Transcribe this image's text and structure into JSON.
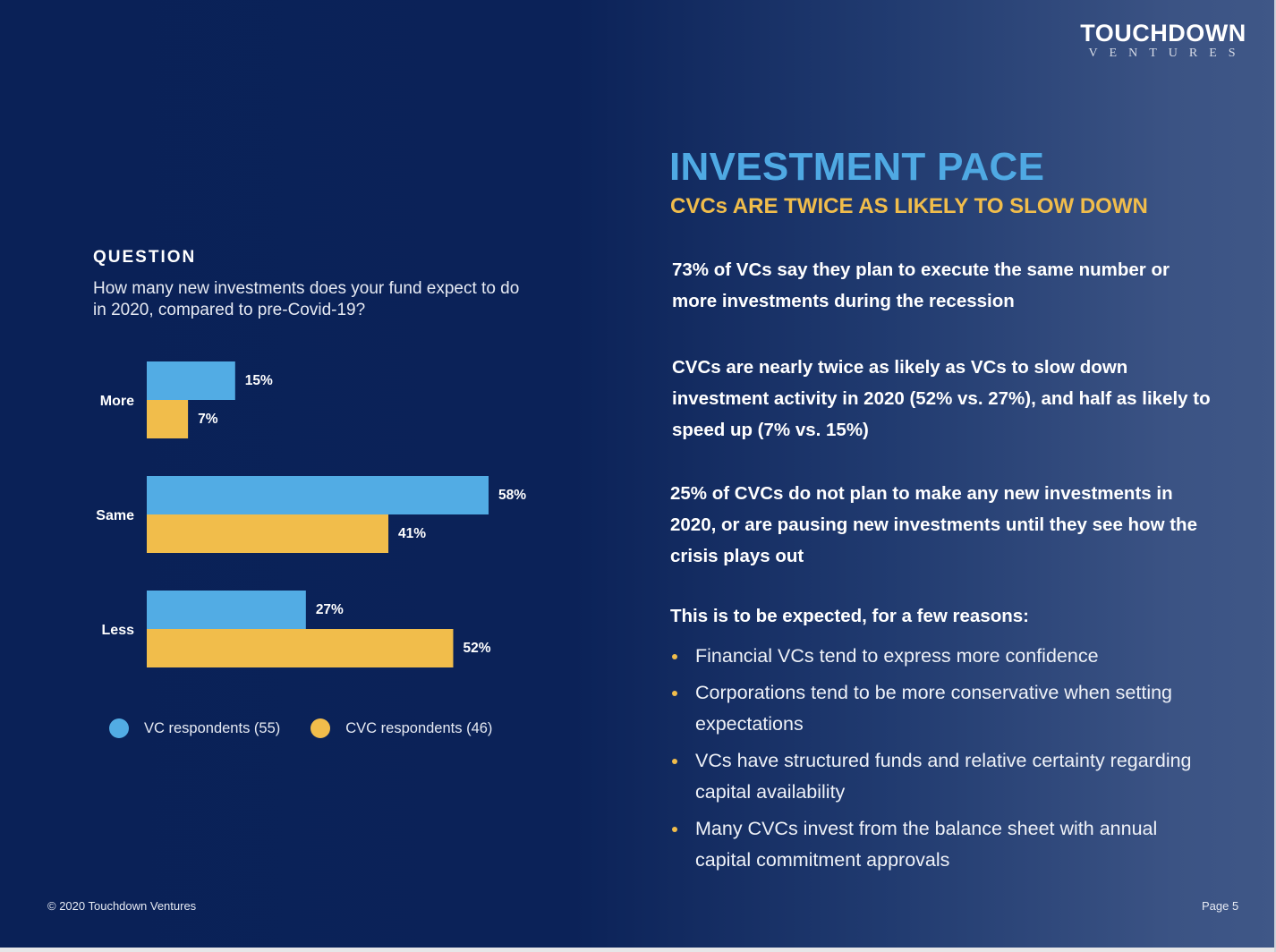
{
  "brand": {
    "name": "TOUCHDOWN",
    "tagline": "VENTURES"
  },
  "header": {
    "title": "INVESTMENT PACE",
    "subtitle": "CVCs ARE TWICE AS LIKELY TO SLOW DOWN"
  },
  "question": {
    "heading": "QUESTION",
    "text": "How many new investments does your fund expect to do in 2020, compared to pre-Covid-19?"
  },
  "findings": [
    "73% of VCs say they plan to execute the same number or more investments during the recession",
    "CVCs are nearly twice as likely as VCs to slow down investment activity in 2020 (52% vs. 27%), and half as likely to speed up (7% vs. 15%)",
    "25% of CVCs do not plan to make any new investments in 2020, or are pausing new investments until they see how the crisis plays out"
  ],
  "reasons": {
    "heading": "This is to be expected, for a few reasons:",
    "items": [
      "Financial VCs tend to express more confidence",
      "Corporations tend to be more conservative when setting expectations",
      "VCs have structured funds and relative certainty regarding capital availability",
      "Many CVCs invest from the balance sheet with annual capital commitment approvals"
    ]
  },
  "colors": {
    "vc": "#52ACE4",
    "cvc": "#F1BD4B",
    "title_blue": "#4FA9E3",
    "accent_yellow": "#F1BD4B",
    "background": "#0A2157"
  },
  "chart_data": {
    "type": "bar",
    "orientation": "horizontal",
    "title": "How many new investments does your fund expect to do in 2020, compared to pre-Covid-19?",
    "xlabel": "",
    "ylabel": "",
    "categories": [
      "More",
      "Same",
      "Less"
    ],
    "series": [
      {
        "name": "VC respondents (55)",
        "color": "#52ACE4",
        "values": [
          15,
          58,
          27
        ]
      },
      {
        "name": "CVC respondents (46)",
        "color": "#F1BD4B",
        "values": [
          7,
          41,
          52
        ]
      }
    ],
    "value_suffix": "%",
    "xlim": [
      0,
      58
    ],
    "grid": false,
    "legend": "bottom"
  },
  "footer": {
    "copyright": "© 2020 Touchdown Ventures",
    "page": "Page 5"
  }
}
